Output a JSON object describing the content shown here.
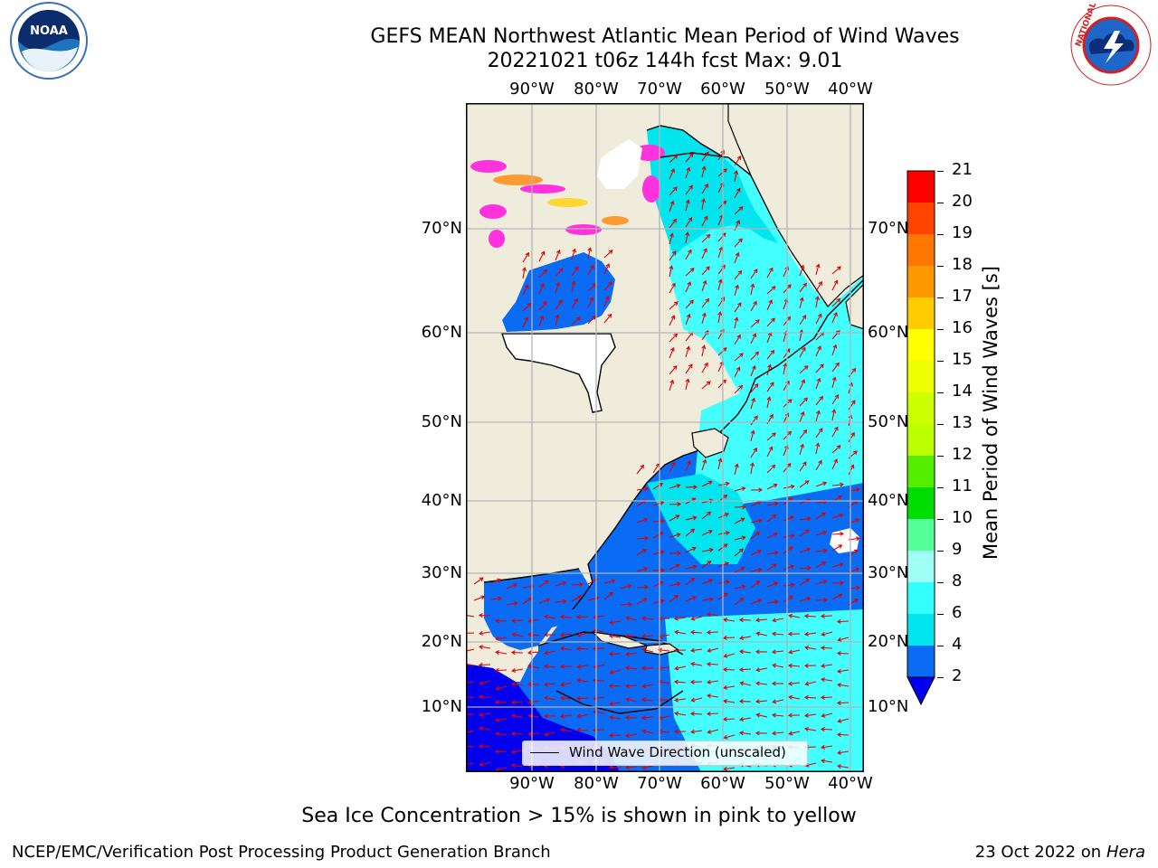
{
  "header": {
    "title_line1": "GEFS MEAN Northwest Atlantic Mean Period of Wind Waves",
    "title_line2": "20221021 t06z 144h fcst   Max: 9.01"
  },
  "logos": {
    "noaa_text": "NOAA",
    "nws_text": "NATIONAL WEATHER SERVICE"
  },
  "map": {
    "lon_labels": [
      "90°W",
      "80°W",
      "70°W",
      "60°W",
      "50°W",
      "40°W"
    ],
    "lat_labels": [
      "70°N",
      "60°N",
      "50°N",
      "40°N",
      "30°N",
      "20°N",
      "10°N"
    ],
    "legend_label": "Wind Wave Direction (unscaled)",
    "land_color": "#efecdc",
    "ocean_colors": [
      "#0000ee",
      "#0a6bf5",
      "#00e5ee",
      "#44ffff",
      "#9ffff5"
    ],
    "ice_colors": [
      "#ff33dd",
      "#ff9a33",
      "#ffd633"
    ],
    "arrow_color": "#e00000"
  },
  "colorbar": {
    "title": "Mean Period of Wind Waves [s]",
    "ticks": [
      "2",
      "4",
      "6",
      "8",
      "9",
      "10",
      "11",
      "12",
      "13",
      "14",
      "15",
      "16",
      "17",
      "18",
      "19",
      "20",
      "21"
    ],
    "colors": [
      "#0a6bf5",
      "#00e5ee",
      "#33ffff",
      "#9ffff5",
      "#55ff99",
      "#00dd00",
      "#55ee00",
      "#bbff00",
      "#ccff00",
      "#eeff00",
      "#ffff00",
      "#ffcc00",
      "#ff9900",
      "#ff7700",
      "#ff4400",
      "#ff0000"
    ],
    "under_color": "#0000ee"
  },
  "notes": {
    "ice_note": "Sea Ice Concentration > 15% is shown in pink to yellow",
    "footer_left": "NCEP/EMC/Verification Post Processing Product Generation Branch",
    "footer_date": "23 Oct 2022 on ",
    "footer_machine": "Hera"
  }
}
